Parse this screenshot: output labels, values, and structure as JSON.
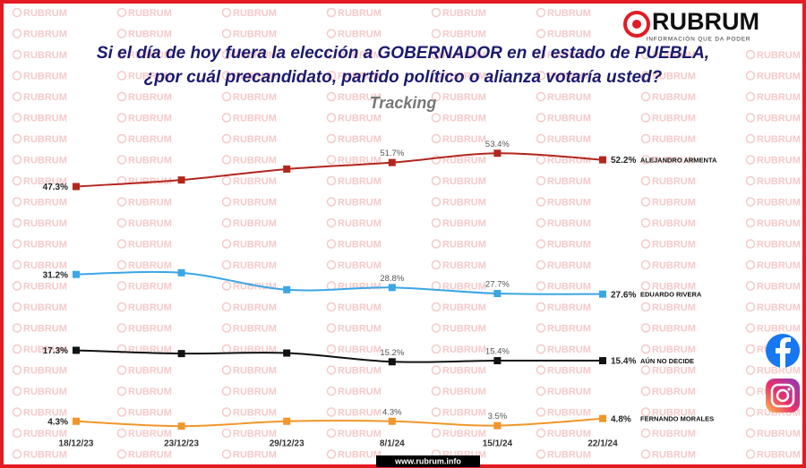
{
  "brand": {
    "name": "RUBRUM",
    "tagline": "INFORMACIÓN QUE DA PODER",
    "watermark": "RUBRUM",
    "url": "www.rubrum.info"
  },
  "chart_data": {
    "type": "line",
    "title": [
      "Si el día de hoy fuera la elección a GOBERNADOR en el estado de PUEBLA,",
      "¿por cuál precandidato, partido político o alianza votaría usted?"
    ],
    "subtitle": "Tracking",
    "categories": [
      "18/12/23",
      "23/12/23",
      "29/12/23",
      "8/1/24",
      "15/1/24",
      "22/1/24"
    ],
    "ylim": [
      0,
      60
    ],
    "series": [
      {
        "name": "ALEJANDRO ARMENTA",
        "color": "#b3261e",
        "values": [
          47.3,
          48.5,
          50.5,
          51.7,
          53.4,
          52.2
        ],
        "value_labels": [
          "47.3%",
          null,
          null,
          "51.7%",
          "53.4%",
          "52.2%"
        ]
      },
      {
        "name": "EDUARDO RIVERA",
        "color": "#3ba6e3",
        "values": [
          31.2,
          31.5,
          28.4,
          28.8,
          27.7,
          27.6
        ],
        "value_labels": [
          "31.2%",
          null,
          null,
          "28.8%",
          "27.7%",
          "27.6%"
        ]
      },
      {
        "name": "AÚN NO DECIDE",
        "color": "#111111",
        "values": [
          17.3,
          16.7,
          16.8,
          15.2,
          15.4,
          15.4
        ],
        "value_labels": [
          "17.3%",
          null,
          null,
          "15.2%",
          "15.4%",
          "15.4%"
        ]
      },
      {
        "name": "FERNANDO MORALES",
        "color": "#f0962a",
        "values": [
          4.3,
          3.4,
          4.3,
          4.3,
          3.5,
          4.8
        ],
        "value_labels": [
          "4.3%",
          null,
          null,
          "4.3%",
          "3.5%",
          "4.8%"
        ]
      }
    ]
  }
}
